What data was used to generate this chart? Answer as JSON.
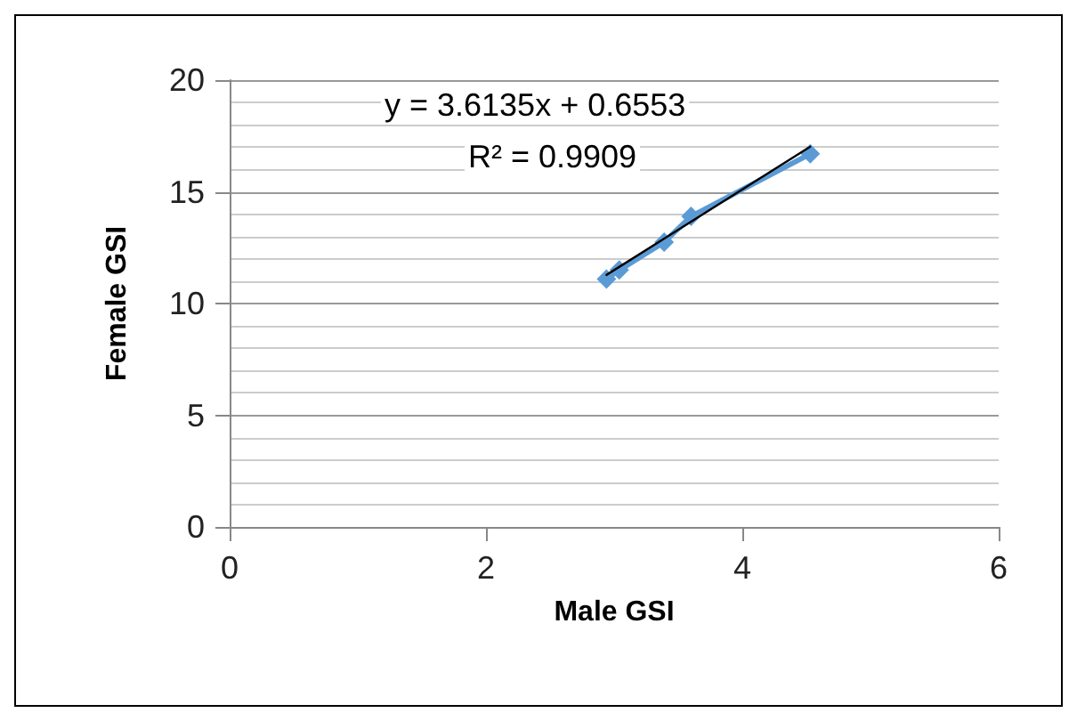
{
  "chart_data": {
    "type": "line",
    "xlabel": "Male GSI",
    "ylabel": "Female GSI",
    "xlim": [
      0,
      6
    ],
    "xticks": [
      0,
      2,
      4,
      6
    ],
    "ylim": [
      0,
      20
    ],
    "yticks": [
      0,
      5,
      10,
      15,
      20
    ],
    "grid": "y",
    "marker": "diamond",
    "series": [
      {
        "color": "#5b9bd5",
        "x": [
          2.94,
          3.04,
          3.39,
          3.6,
          4.53
        ],
        "values": [
          11.1,
          11.5,
          12.75,
          13.9,
          16.7
        ]
      },
      {
        "type": "line",
        "color": "#000000",
        "marker": "none",
        "x": [
          2.94,
          4.53
        ],
        "values": [
          11.28,
          17.02
        ]
      }
    ],
    "annotations": [
      "y = 3.6135x + 0.6553",
      "R² = 0.9909"
    ]
  }
}
